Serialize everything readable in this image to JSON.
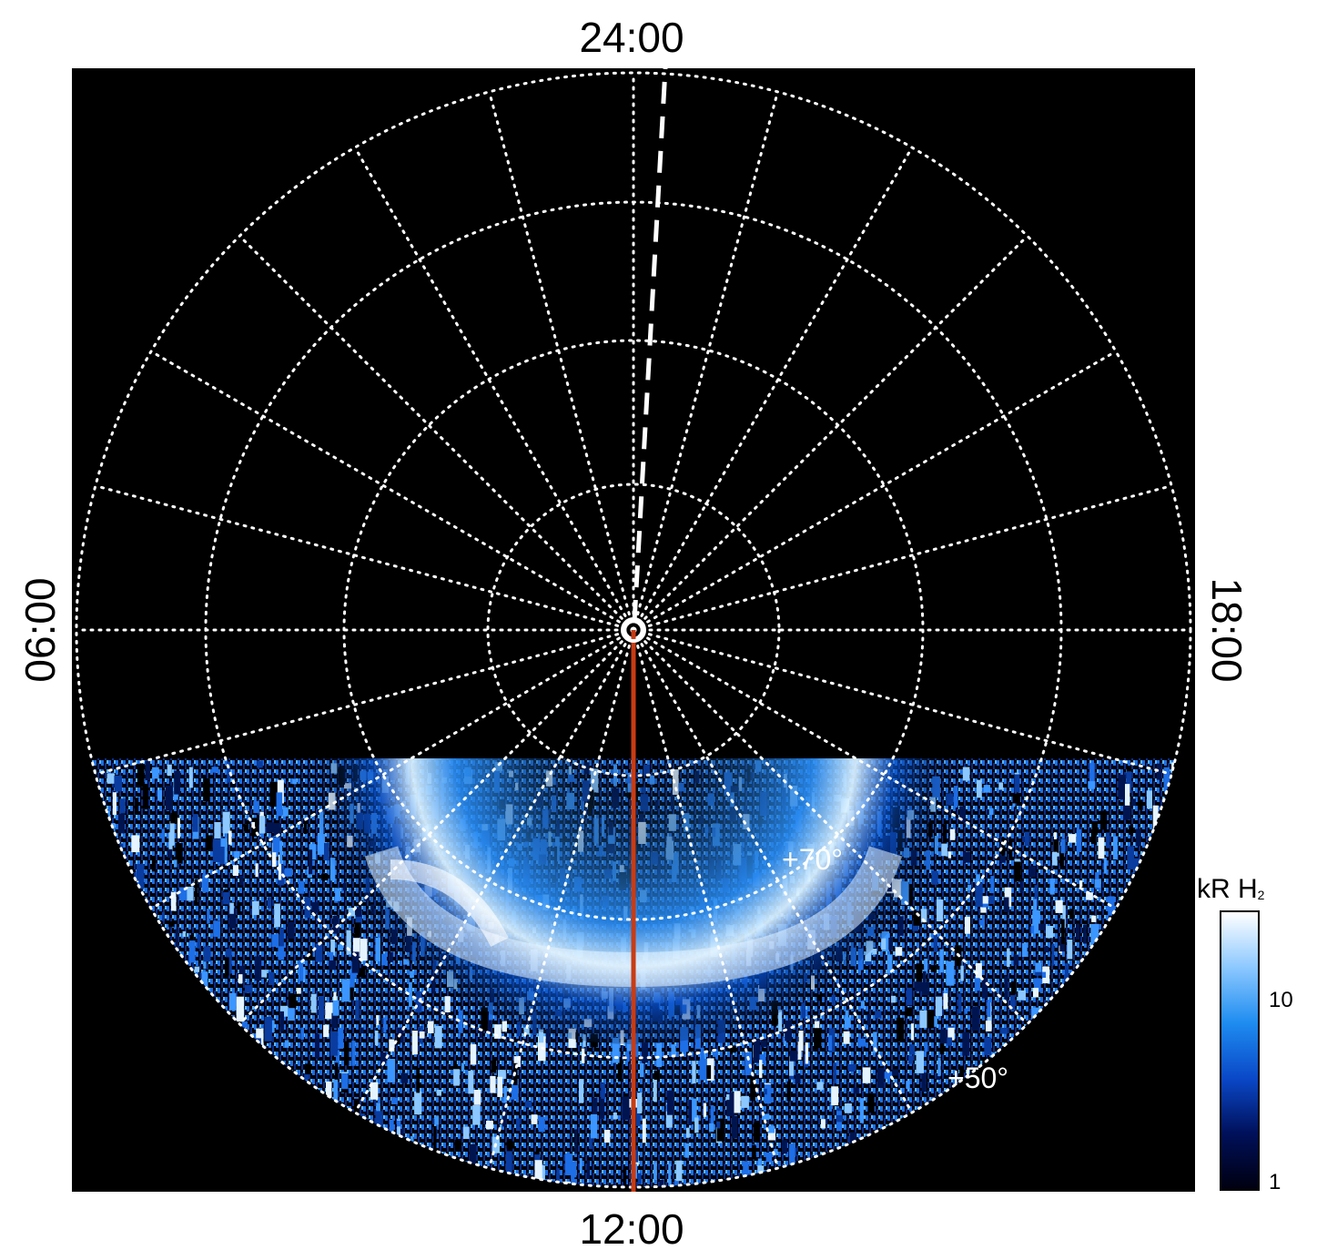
{
  "local_time_labels": {
    "top": "24:00",
    "bottom": "12:00",
    "left": "06:00",
    "right": "18:00"
  },
  "latitude_labels": [
    {
      "text": "+70°",
      "value": 70
    },
    {
      "text": "+50°",
      "value": 50
    }
  ],
  "colorbar": {
    "title_main": "kR H",
    "title_sub": "2",
    "scale": "log",
    "range": [
      1,
      20
    ],
    "ticks": [
      {
        "text": "10",
        "value": 10
      },
      {
        "text": "1",
        "value": 1
      }
    ],
    "colors": [
      "#000010",
      "#00105a",
      "#0a48c8",
      "#1e8cf0",
      "#8cc8ff",
      "#ffffff"
    ]
  },
  "colors": {
    "background": "#000000",
    "grid": "#ffffff",
    "meridian_line": "#c83c14",
    "emission_base": "#0a52c8"
  }
}
